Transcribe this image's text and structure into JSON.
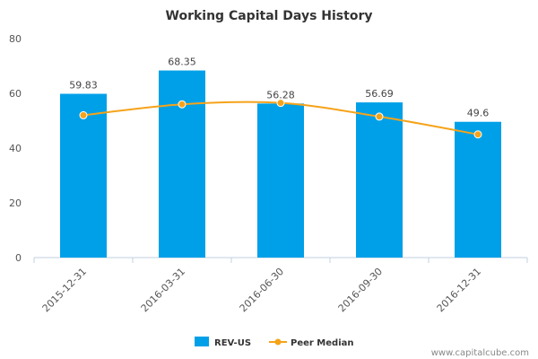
{
  "chart_data": {
    "type": "bar",
    "title": "Working Capital Days History",
    "categories": [
      "2015-12-31",
      "2016-03-31",
      "2016-06-30",
      "2016-09-30",
      "2016-12-31"
    ],
    "series": [
      {
        "name": "REV-US",
        "type": "bar",
        "color": "#00a0e8",
        "values": [
          59.83,
          68.35,
          56.28,
          56.69,
          49.6
        ],
        "labels": [
          "59.83",
          "68.35",
          "56.28",
          "56.69",
          "49.6"
        ]
      },
      {
        "name": "Peer Median",
        "type": "line",
        "color": "#f5a31a",
        "values": [
          52,
          56,
          56.5,
          51.5,
          45
        ]
      }
    ],
    "ylim": [
      0,
      80
    ],
    "yticks": [
      "0",
      "20",
      "40",
      "60",
      "80"
    ],
    "grid": false,
    "legend": "bottom-center"
  },
  "watermark": "www.capitalcube.com"
}
